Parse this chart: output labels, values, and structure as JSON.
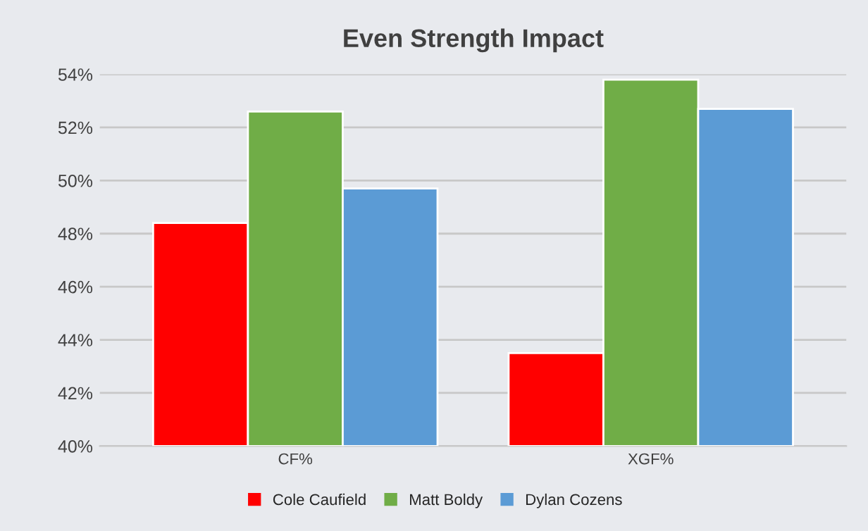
{
  "chart_data": {
    "type": "bar",
    "title": "Even Strength Impact",
    "categories": [
      "CF%",
      "XGF%"
    ],
    "series": [
      {
        "name": "Cole Caufield",
        "color": "#ff0000",
        "values": [
          48.4,
          43.5
        ]
      },
      {
        "name": "Matt Boldy",
        "color": "#70ad47",
        "values": [
          52.6,
          53.8
        ]
      },
      {
        "name": "Dylan Cozens",
        "color": "#5b9bd5",
        "values": [
          49.7,
          52.7
        ]
      }
    ],
    "ylim": [
      40,
      54
    ],
    "yticks": [
      {
        "value": 40,
        "label": "40%"
      },
      {
        "value": 42,
        "label": "42%"
      },
      {
        "value": 44,
        "label": "44%"
      },
      {
        "value": 46,
        "label": "46%"
      },
      {
        "value": 48,
        "label": "48%"
      },
      {
        "value": 50,
        "label": "50%"
      },
      {
        "value": 52,
        "label": "52%"
      },
      {
        "value": 54,
        "label": "54%"
      }
    ],
    "grid": "y",
    "legend": "bottom"
  }
}
